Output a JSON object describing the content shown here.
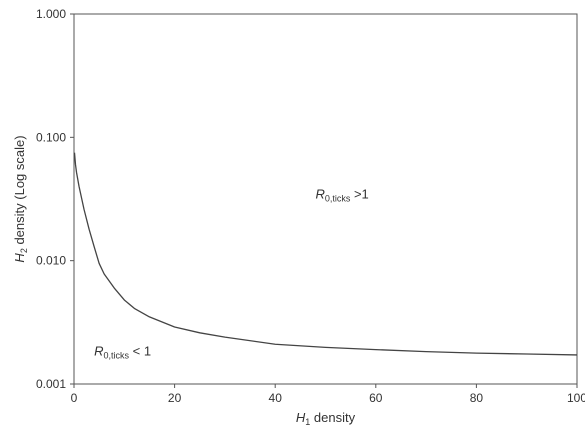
{
  "chart_data": {
    "type": "line",
    "title": "",
    "xlabel": {
      "var": "H",
      "sub": "1",
      "rest": " density"
    },
    "ylabel": {
      "var": "H",
      "sub": "2",
      "rest": " density (Log scale)"
    },
    "xlim": [
      0,
      100
    ],
    "ylim": [
      0.001,
      1.0
    ],
    "yscale": "log",
    "grid": false,
    "xticks": [
      0,
      20,
      40,
      60,
      80,
      100
    ],
    "xtick_labels": [
      "0",
      "20",
      "40",
      "60",
      "80",
      "100"
    ],
    "yticks": [
      0.001,
      0.01,
      0.1,
      1.0
    ],
    "ytick_labels": [
      "0.001",
      "0.010",
      "0.100",
      "1.000"
    ],
    "series": [
      {
        "color": "#444444",
        "x": [
          0.1,
          0.3,
          0.5,
          1,
          2,
          3,
          4,
          5,
          6,
          8,
          10,
          12,
          15,
          20,
          25,
          30,
          40,
          50,
          60,
          70,
          80,
          90,
          100
        ],
        "y": [
          0.075,
          0.06,
          0.052,
          0.04,
          0.026,
          0.018,
          0.013,
          0.0095,
          0.0078,
          0.006,
          0.0048,
          0.0041,
          0.0035,
          0.0029,
          0.0026,
          0.0024,
          0.0021,
          0.00198,
          0.0019,
          0.00183,
          0.00178,
          0.00175,
          0.00172
        ]
      }
    ],
    "annotations": [
      {
        "var": "R",
        "sub": "0,ticks",
        "rest": " >1",
        "x": 48,
        "y": 0.032
      },
      {
        "var": "R",
        "sub": "0,ticks",
        "rest": " < 1",
        "x": 4,
        "y": 0.0017
      }
    ]
  }
}
